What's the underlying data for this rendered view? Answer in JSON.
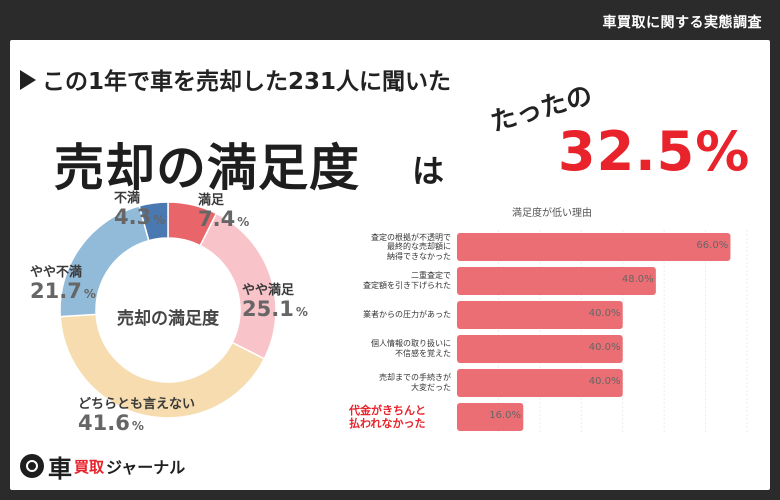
{
  "header": {
    "survey_tag": "車買取に関する実態調査"
  },
  "headline": {
    "text": "この1年で車を売却した231人に聞いた"
  },
  "title": {
    "main": "売却の満足度",
    "suffix": "は",
    "tatta": "たったの",
    "percent": "32.5%"
  },
  "colors": {
    "accent": "#e8232b",
    "bar": "#ea6e73",
    "ring_track": "#eeeeee"
  },
  "chart_data": [
    {
      "type": "pie",
      "title": "売却の満足度",
      "slices": [
        {
          "name": "満足",
          "value": 7.4,
          "display": "7.4",
          "color": "#e8656a"
        },
        {
          "name": "やや満足",
          "value": 25.1,
          "display": "25.1",
          "color": "#f9c4c9"
        },
        {
          "name": "どちらとも言えない",
          "value": 41.6,
          "display": "41.6",
          "color": "#f6dcae"
        },
        {
          "name": "やや不満",
          "value": 21.7,
          "display": "21.7",
          "color": "#92bbd9"
        },
        {
          "name": "不満",
          "value": 4.3,
          "display": "4.3",
          "color": "#4a78b0"
        }
      ],
      "unit": "%"
    },
    {
      "type": "bar",
      "orientation": "horizontal",
      "title": "満足度が低い理由",
      "categories": [
        "査定の根拠が不透明で\n最終的な売却額に\n納得できなかった",
        "二重査定で\n査定額を引き下げられた",
        "業者からの圧力があった",
        "個人情報の取り扱いに\n不信感を覚えた",
        "売却までの手続きが\n大変だった",
        "代金がきちんと\n払われなかった"
      ],
      "values": [
        66.0,
        48.0,
        40.0,
        40.0,
        40.0,
        16.0
      ],
      "labels": [
        "66.0%",
        "48.0%",
        "40.0%",
        "40.0%",
        "40.0%",
        "16.0%"
      ],
      "highlight_index": 5,
      "xlim": [
        0,
        70
      ],
      "grid": true
    }
  ],
  "logo": {
    "big": "車",
    "mid": "買取",
    "rest": "ジャーナル"
  }
}
